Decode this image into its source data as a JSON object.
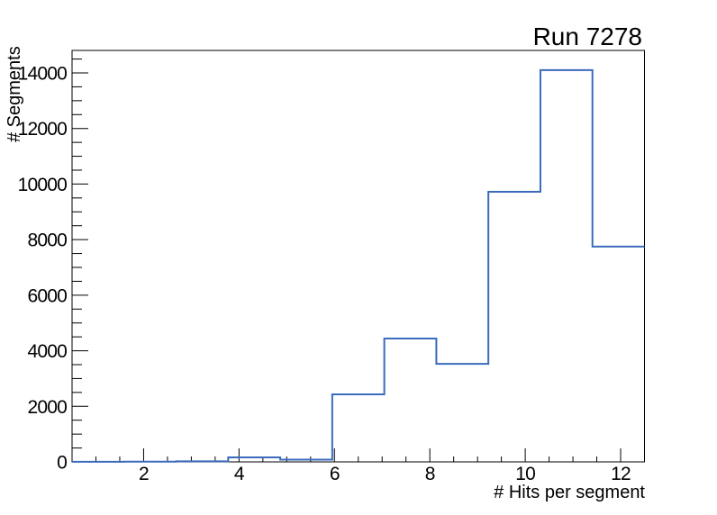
{
  "window": {
    "background": "#ffffff"
  },
  "chart_data": {
    "type": "bar",
    "style": "step-histogram",
    "title": "Run 7278",
    "xlabel": "# Hits per segment",
    "ylabel": "# Segments",
    "xlim": [
      0.5,
      12.5
    ],
    "ylim": [
      0,
      14810
    ],
    "n_bins": 11,
    "bin_edges": [
      0.5,
      1.5909,
      2.6818,
      3.7727,
      4.8636,
      5.9545,
      7.0455,
      8.1364,
      9.2273,
      10.3182,
      11.4091,
      12.5
    ],
    "values": [
      5,
      10,
      20,
      160,
      80,
      2430,
      4440,
      3530,
      9720,
      14100,
      7750
    ],
    "x_major_ticks": [
      2,
      4,
      6,
      8,
      10,
      12
    ],
    "x_minor_step": 0.5,
    "y_major_ticks": [
      0,
      2000,
      4000,
      6000,
      8000,
      10000,
      12000,
      14000
    ],
    "y_minor_step": 500,
    "grid": false,
    "legend_position": "none",
    "line_color": "#3b6bbd",
    "axis_color": "#000000"
  }
}
